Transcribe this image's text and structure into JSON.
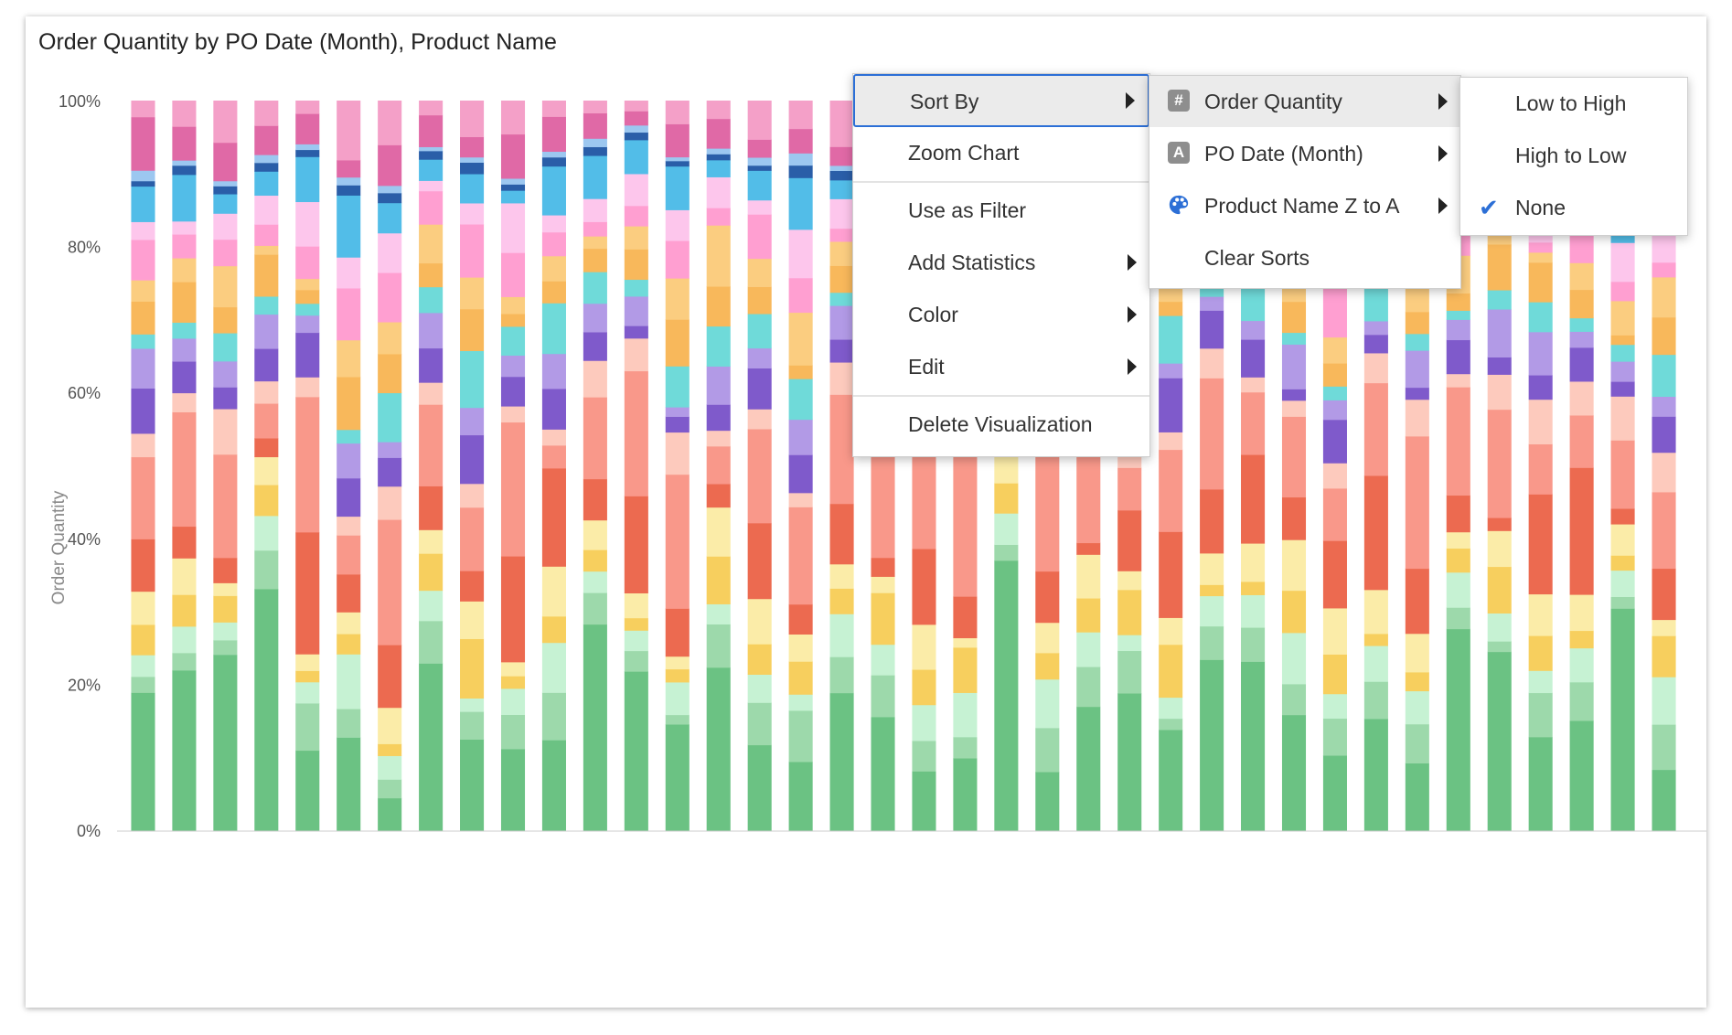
{
  "chart_data": {
    "type": "bar",
    "stacked": true,
    "normalized": true,
    "title": "Order Quantity by PO Date (Month), Product Name",
    "ylabel": "Order Quantity",
    "xlabel": "",
    "ylim": [
      0,
      100
    ],
    "yticks": [
      "0%",
      "20%",
      "40%",
      "60%",
      "80%",
      "100%"
    ],
    "n_bars": 38,
    "palette": [
      "#6bc283",
      "#9dd9ab",
      "#c6f2d3",
      "#f7cf5e",
      "#fbeca8",
      "#ec6a50",
      "#f9988a",
      "#fdcabd",
      "#7f5acb",
      "#b29ae6",
      "#6fdad9",
      "#f8b85b",
      "#fbcd80",
      "#ff9fd1",
      "#fdc6ec",
      "#52bde8",
      "#2a5ea8",
      "#9cc7f0",
      "#e069a6",
      "#f4a0c8"
    ],
    "colors": {
      "menu_focus": "#2c6fd6",
      "menu_highlight": "#ebebeb",
      "check": "#2c6fd6"
    }
  },
  "context_menu": {
    "items": [
      {
        "label": "Sort By",
        "submenu": true
      },
      {
        "label": "Zoom Chart",
        "submenu": false
      },
      {
        "label": "Use as Filter",
        "submenu": false
      },
      {
        "label": "Add Statistics",
        "submenu": true
      },
      {
        "label": "Color",
        "submenu": true
      },
      {
        "label": "Edit",
        "submenu": true
      },
      {
        "label": "Delete Visualization",
        "submenu": false
      }
    ]
  },
  "sort_menu": {
    "items": [
      {
        "label": "Order Quantity",
        "icon": "hash-icon",
        "icon_glyph": "#"
      },
      {
        "label": "PO Date (Month)",
        "icon": "text-a-icon",
        "icon_glyph": "A"
      },
      {
        "label": "Product Name Z to A",
        "icon": "palette-icon"
      },
      {
        "label": "Clear Sorts"
      }
    ]
  },
  "order_menu": {
    "items": [
      {
        "label": "Low to High"
      },
      {
        "label": "High to Low"
      },
      {
        "label": "None",
        "checked": true
      }
    ]
  }
}
